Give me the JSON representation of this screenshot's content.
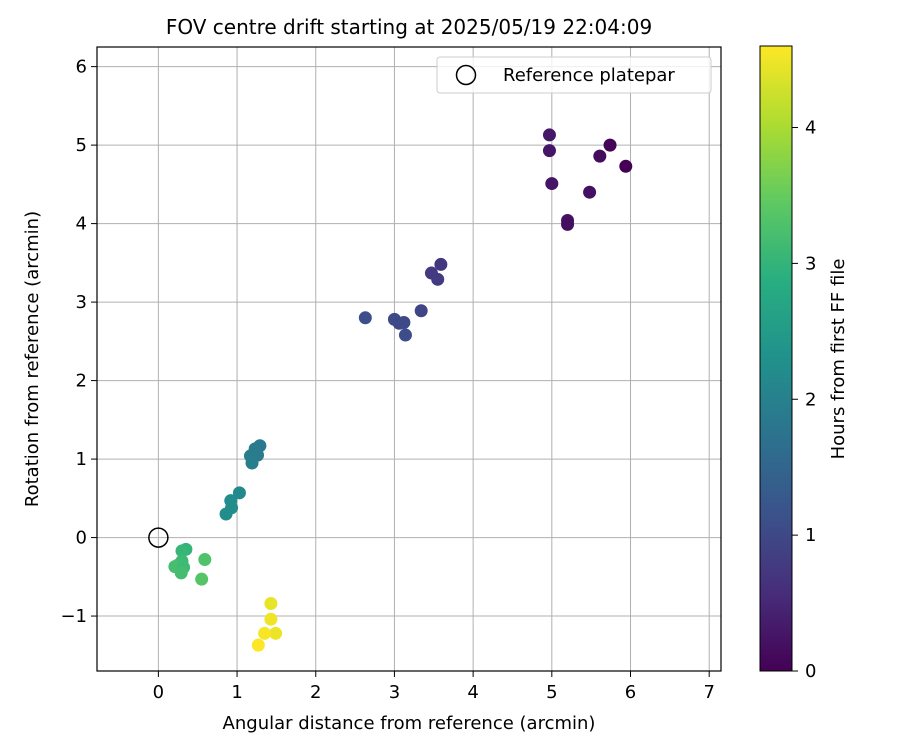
{
  "chart_data": {
    "type": "scatter",
    "title": "FOV centre drift starting at 2025/05/19 22:04:09",
    "xlabel": "Angular distance from reference (arcmin)",
    "ylabel": "Rotation from reference (arcmin)",
    "xlim": [
      -0.78,
      7.15
    ],
    "ylim": [
      -1.7,
      6.25
    ],
    "xticks": [
      0,
      1,
      2,
      3,
      4,
      5,
      6,
      7
    ],
    "yticks": [
      -1,
      0,
      1,
      2,
      3,
      4,
      5,
      6
    ],
    "xtick_labels": [
      "0",
      "1",
      "2",
      "3",
      "4",
      "5",
      "6",
      "7"
    ],
    "ytick_labels": [
      "−1",
      "0",
      "1",
      "2",
      "3",
      "4",
      "5",
      "6"
    ],
    "grid": true,
    "legend": {
      "position": "top-right",
      "entries": [
        "Reference platepar"
      ]
    },
    "colorbar": {
      "label": "Hours from first FF file",
      "colormap": "viridis",
      "range": [
        0,
        4.6
      ],
      "ticks": [
        0,
        1,
        2,
        3,
        4
      ],
      "tick_labels": [
        "0",
        "1",
        "2",
        "3",
        "4"
      ]
    },
    "reference_point": {
      "x": 0,
      "y": 0
    },
    "points": [
      {
        "x": 4.97,
        "y": 5.13,
        "h": 0.3
      },
      {
        "x": 4.97,
        "y": 4.93,
        "h": 0.28
      },
      {
        "x": 5.74,
        "y": 5.0,
        "h": 0.05
      },
      {
        "x": 5.61,
        "y": 4.86,
        "h": 0.15
      },
      {
        "x": 5.94,
        "y": 4.73,
        "h": 0.0
      },
      {
        "x": 5.0,
        "y": 4.51,
        "h": 0.25
      },
      {
        "x": 5.48,
        "y": 4.4,
        "h": 0.2
      },
      {
        "x": 5.2,
        "y": 4.04,
        "h": 0.22
      },
      {
        "x": 5.2,
        "y": 3.99,
        "h": 0.18
      },
      {
        "x": 3.59,
        "y": 3.48,
        "h": 0.75
      },
      {
        "x": 3.47,
        "y": 3.37,
        "h": 0.78
      },
      {
        "x": 3.55,
        "y": 3.29,
        "h": 0.8
      },
      {
        "x": 3.34,
        "y": 2.89,
        "h": 0.95
      },
      {
        "x": 2.63,
        "y": 2.8,
        "h": 1.1
      },
      {
        "x": 3.0,
        "y": 2.78,
        "h": 1.05
      },
      {
        "x": 3.06,
        "y": 2.73,
        "h": 1.0
      },
      {
        "x": 3.12,
        "y": 2.74,
        "h": 1.02
      },
      {
        "x": 3.14,
        "y": 2.58,
        "h": 1.08
      },
      {
        "x": 1.29,
        "y": 1.17,
        "h": 1.85
      },
      {
        "x": 1.23,
        "y": 1.13,
        "h": 1.88
      },
      {
        "x": 1.17,
        "y": 1.04,
        "h": 1.92
      },
      {
        "x": 1.26,
        "y": 1.05,
        "h": 1.9
      },
      {
        "x": 1.19,
        "y": 0.95,
        "h": 1.95
      },
      {
        "x": 1.03,
        "y": 0.57,
        "h": 2.15
      },
      {
        "x": 0.92,
        "y": 0.47,
        "h": 2.2
      },
      {
        "x": 0.93,
        "y": 0.38,
        "h": 2.22
      },
      {
        "x": 0.86,
        "y": 0.3,
        "h": 2.25
      },
      {
        "x": 0.35,
        "y": -0.15,
        "h": 3.0
      },
      {
        "x": 0.3,
        "y": -0.17,
        "h": 3.05
      },
      {
        "x": 0.59,
        "y": -0.28,
        "h": 3.3
      },
      {
        "x": 0.3,
        "y": -0.3,
        "h": 3.1
      },
      {
        "x": 0.25,
        "y": -0.35,
        "h": 3.15
      },
      {
        "x": 0.21,
        "y": -0.37,
        "h": 3.2
      },
      {
        "x": 0.32,
        "y": -0.38,
        "h": 3.12
      },
      {
        "x": 0.29,
        "y": -0.45,
        "h": 3.18
      },
      {
        "x": 0.55,
        "y": -0.53,
        "h": 3.35
      },
      {
        "x": 1.43,
        "y": -0.84,
        "h": 4.45
      },
      {
        "x": 1.43,
        "y": -1.04,
        "h": 4.5
      },
      {
        "x": 1.49,
        "y": -1.22,
        "h": 4.48
      },
      {
        "x": 1.35,
        "y": -1.22,
        "h": 4.55
      },
      {
        "x": 1.27,
        "y": -1.37,
        "h": 4.6
      }
    ]
  }
}
